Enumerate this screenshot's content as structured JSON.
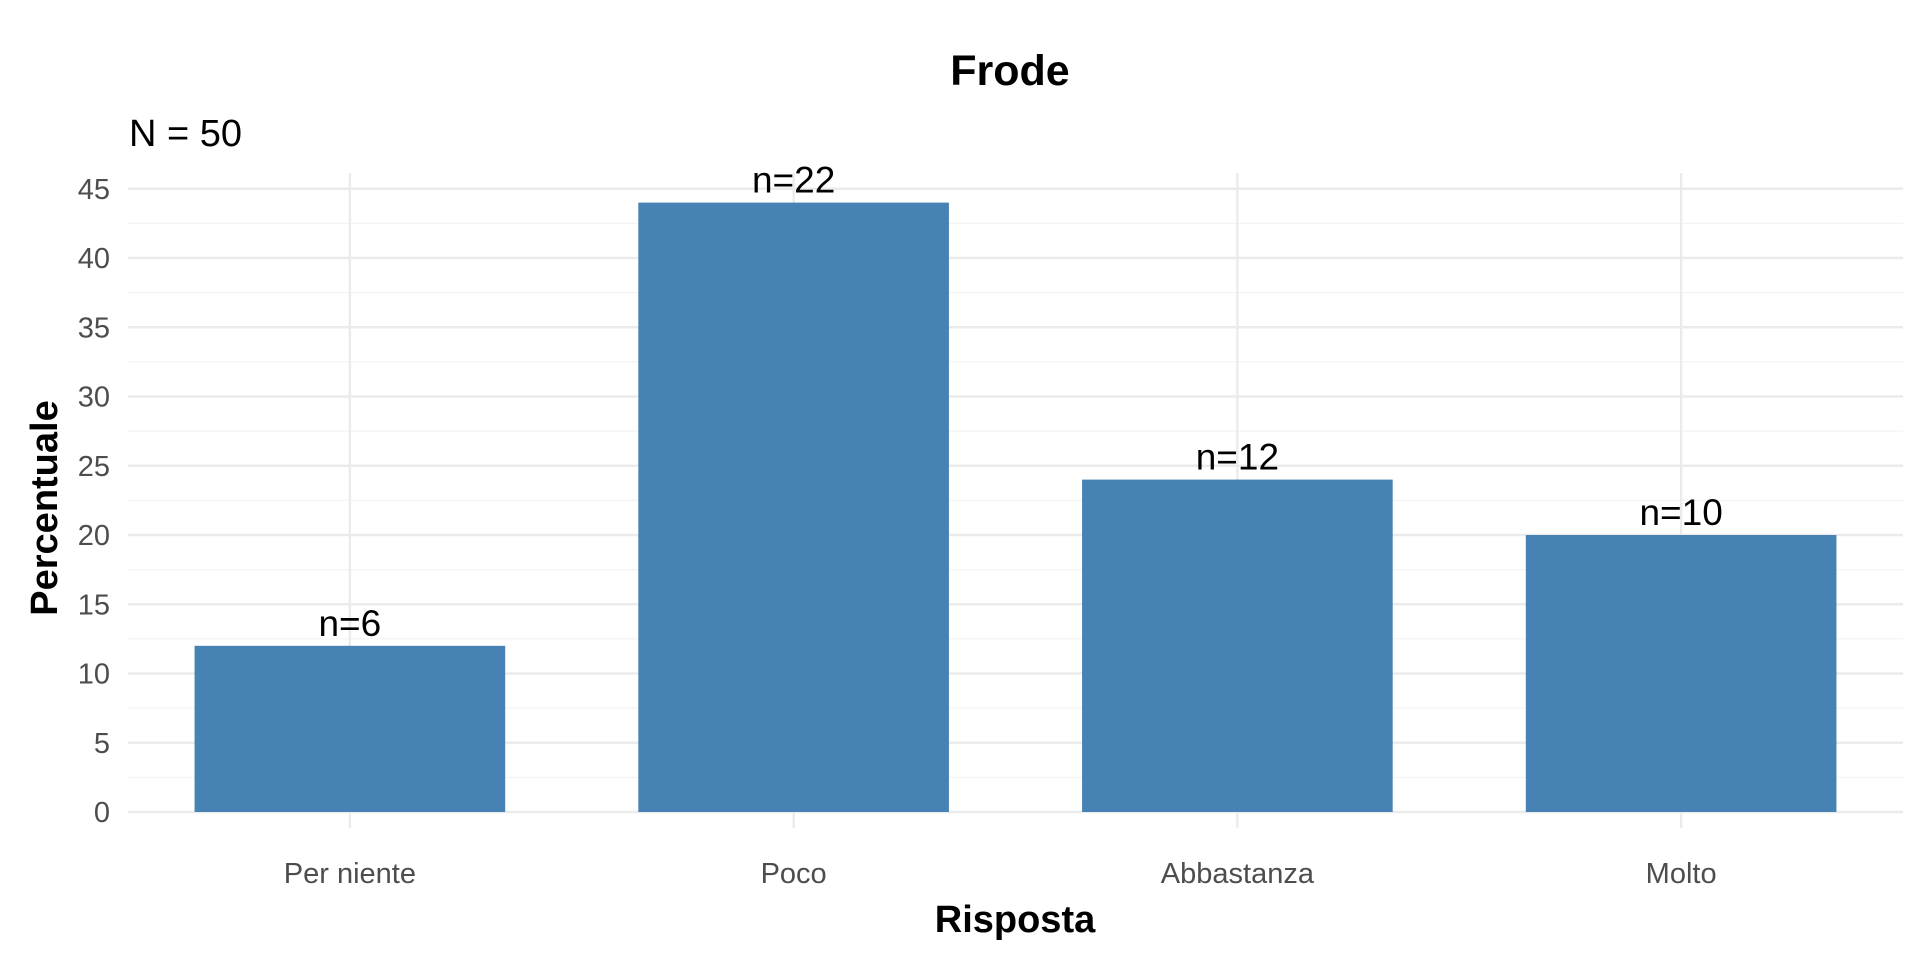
{
  "chart_data": {
    "type": "bar",
    "title": "Frode",
    "subtitle": "N = 50",
    "xlabel": "Risposta",
    "ylabel": "Percentuale",
    "categories": [
      "Per niente",
      "Poco",
      "Abbastanza",
      "Molto"
    ],
    "values": [
      12,
      44,
      24,
      20
    ],
    "labels": [
      "n=6",
      "n=22",
      "n=12",
      "n=10"
    ],
    "yticks": [
      "0",
      "5",
      "10",
      "15",
      "20",
      "25",
      "30",
      "35",
      "40",
      "45"
    ],
    "ylim": [
      0,
      45
    ],
    "grid": true,
    "legend": "none",
    "colors": {
      "bar": "#4682B4",
      "background": "#ffffff"
    }
  }
}
